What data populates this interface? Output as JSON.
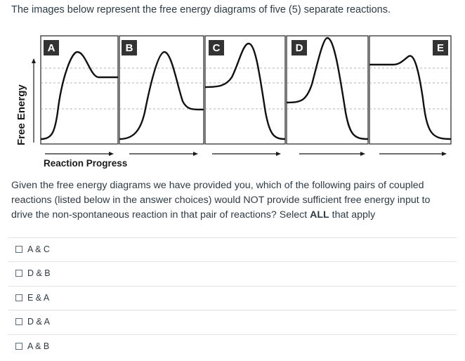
{
  "intro_text": "The images below represent the free energy diagrams of five (5) separate reactions.",
  "figure": {
    "y_axis_label": "Free Energy",
    "x_axis_label": "Reaction Progress",
    "panels": [
      {
        "label": "A"
      },
      {
        "label": "B"
      },
      {
        "label": "C"
      },
      {
        "label": "D"
      },
      {
        "label": "E"
      }
    ]
  },
  "question": {
    "text_before": "Given the free energy diagrams we have provided you, which of the following pairs of coupled reactions (listed below in the answer choices) would NOT provide sufficient free energy input to drive the non-spontaneous reaction in that pair of reactions? Select ",
    "emphasis": "ALL",
    "text_after": " that apply"
  },
  "choices": [
    {
      "label": "A & C"
    },
    {
      "label": "D & B"
    },
    {
      "label": "E & A"
    },
    {
      "label": "D & A"
    },
    {
      "label": "A & B"
    }
  ]
}
